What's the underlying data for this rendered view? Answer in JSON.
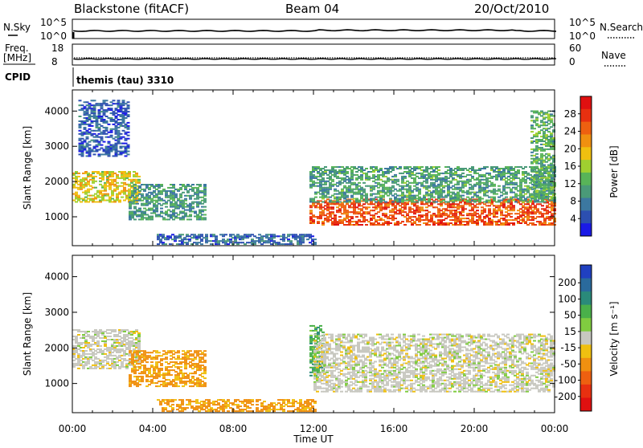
{
  "header": {
    "station": "Blackstone (fitACF)",
    "beam": "Beam 04",
    "date": "20/Oct/2010"
  },
  "strip_labels": {
    "nsky": "N.Sky",
    "nsky_ticks": [
      "10^5",
      "10^0"
    ],
    "nsearch": "N.Search",
    "nsearch_ticks": [
      "10^5",
      "10^0"
    ],
    "freq": "Freq.",
    "freq_unit": "[MHz]",
    "freq_ticks": [
      "18",
      "8"
    ],
    "nave": "Nave",
    "nave_ticks": [
      "60",
      "0"
    ],
    "cpid": "CPID",
    "cpid_value": "themis (tau) 3310"
  },
  "colors": {
    "power": [
      "#1a1ae6",
      "#2c4fb0",
      "#3c78a0",
      "#4a9a78",
      "#58b458",
      "#a0d030",
      "#f0c010",
      "#f09010",
      "#ee6010",
      "#e83010",
      "#e01010"
    ],
    "velocity": [
      "#2040c0",
      "#2a6a9c",
      "#2a8a7a",
      "#4ab04a",
      "#80cc40",
      "#c8c8c0",
      "#f0c010",
      "#f09010",
      "#ee6010",
      "#e83010",
      "#e01010"
    ],
    "ground": "#c8c8c0"
  },
  "chart_data": [
    {
      "type": "heatmap",
      "name": "power",
      "xlabel": "",
      "ylabel": "Slant Range [km]",
      "x_ticks": [
        "00:00",
        "04:00",
        "08:00",
        "12:00",
        "16:00",
        "20:00",
        "00:00"
      ],
      "xlim_hours": [
        0,
        24
      ],
      "y_ticks": [
        1000,
        2000,
        3000,
        4000
      ],
      "ylim": [
        180,
        4600
      ],
      "colorbar": {
        "label": "Power [dB]",
        "ticks": [
          4,
          8,
          12,
          16,
          20,
          24,
          28
        ],
        "range": [
          0,
          32
        ]
      },
      "regions": [
        {
          "t0": 0.0,
          "t1": 3.3,
          "r0": 1400,
          "r1": 2300,
          "power": 18
        },
        {
          "t0": 2.8,
          "t1": 6.6,
          "r0": 900,
          "r1": 1900,
          "power": 10
        },
        {
          "t0": 0.3,
          "t1": 2.8,
          "r0": 2700,
          "r1": 4300,
          "power": 5
        },
        {
          "t0": 4.2,
          "t1": 12.0,
          "r0": 200,
          "r1": 500,
          "power": 6
        },
        {
          "t0": 11.8,
          "t1": 24.0,
          "r0": 750,
          "r1": 1500,
          "power": 26
        },
        {
          "t0": 11.8,
          "t1": 24.0,
          "r0": 1400,
          "r1": 2400,
          "power": 11
        },
        {
          "t0": 22.8,
          "t1": 24.0,
          "r0": 1500,
          "r1": 4000,
          "power": 12
        }
      ]
    },
    {
      "type": "heatmap",
      "name": "velocity",
      "xlabel": "Time UT",
      "ylabel": "Slant Range [km]",
      "x_ticks": [
        "00:00",
        "04:00",
        "08:00",
        "12:00",
        "16:00",
        "20:00",
        "00:00"
      ],
      "xlim_hours": [
        0,
        24
      ],
      "y_ticks": [
        1000,
        2000,
        3000,
        4000
      ],
      "ylim": [
        180,
        4600
      ],
      "colorbar": {
        "label": "Velocity [m s⁻¹]",
        "ticks": [
          200,
          100,
          50,
          15,
          -15,
          -50,
          -100,
          -200
        ]
      },
      "regions": [
        {
          "t0": 0.0,
          "t1": 3.3,
          "r0": 1400,
          "r1": 2500,
          "velocity": 0
        },
        {
          "t0": 2.8,
          "t1": 6.6,
          "r0": 900,
          "r1": 1900,
          "velocity": -60
        },
        {
          "t0": 4.2,
          "t1": 12.0,
          "r0": 200,
          "r1": 550,
          "velocity": -60
        },
        {
          "t0": 11.8,
          "t1": 12.5,
          "r0": 1200,
          "r1": 2600,
          "velocity": 40
        },
        {
          "t0": 12.0,
          "t1": 24.0,
          "r0": 750,
          "r1": 1500,
          "velocity": 0
        },
        {
          "t0": 12.0,
          "t1": 24.0,
          "r0": 1500,
          "r1": 2400,
          "velocity": 0
        }
      ]
    }
  ]
}
